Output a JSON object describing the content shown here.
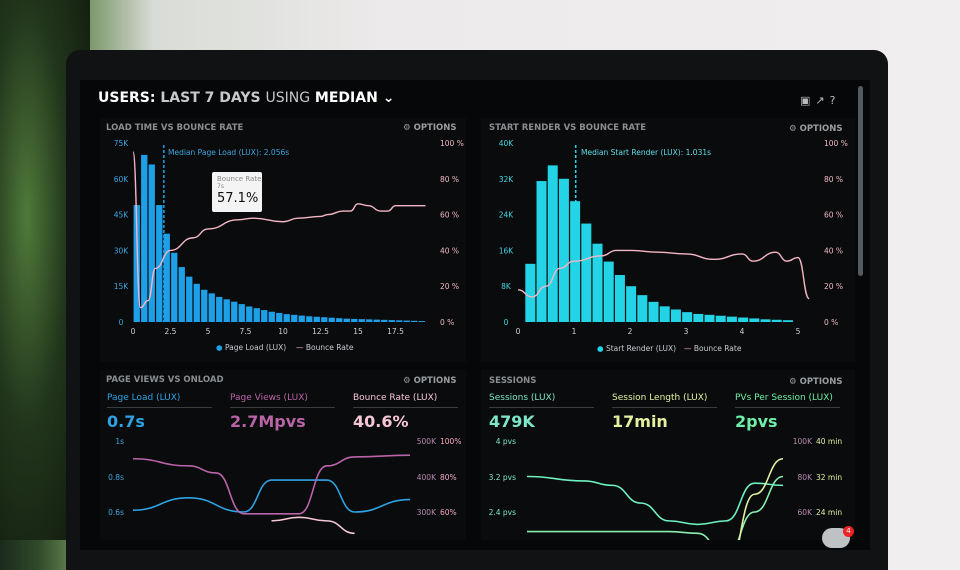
{
  "header": {
    "title_prefix": "USERS:",
    "title_main": "LAST 7 DAYS",
    "title_using": "USING",
    "title_method": "MEDIAN",
    "icons": [
      "monitor-icon",
      "share-icon",
      "help-icon"
    ]
  },
  "options_label": "OPTIONS",
  "panels": {
    "load": {
      "title": "LOAD TIME VS BOUNCE RATE",
      "median_label": "Median Page Load (LUX): 2.056s",
      "tooltip": {
        "title": "Bounce Rate",
        "sub": "7s",
        "value": "57.1%"
      },
      "legend": [
        "Page Load (LUX)",
        "Bounce Rate"
      ]
    },
    "render": {
      "title": "START RENDER VS BOUNCE RATE",
      "median_label": "Median Start Render (LUX): 1.031s",
      "legend": [
        "Start Render (LUX)",
        "Bounce Rate"
      ]
    },
    "pageviews": {
      "title": "PAGE VIEWS VS ONLOAD",
      "metrics": [
        {
          "label": "Page Load (LUX)",
          "value": "0.7s",
          "color": "#2ea3e6"
        },
        {
          "label": "Page Views (LUX)",
          "value": "2.7Mpvs",
          "color": "#b964a8"
        },
        {
          "label": "Bounce Rate (LUX)",
          "value": "40.6%",
          "color": "#f6c6d6"
        }
      ]
    },
    "sessions": {
      "title": "SESSIONS",
      "metrics": [
        {
          "label": "Sessions (LUX)",
          "value": "479K",
          "color": "#7de8c8"
        },
        {
          "label": "Session Length (LUX)",
          "value": "17min",
          "color": "#e4f0a0"
        },
        {
          "label": "PVs Per Session (LUX)",
          "value": "2pvs",
          "color": "#6ef0a8"
        }
      ]
    }
  },
  "notification_count": "4",
  "colors": {
    "blue": "#1ea0e8",
    "cyan": "#22d4e6",
    "pink": "#f4b6c6"
  },
  "chart_data": [
    {
      "type": "bar",
      "title": "LOAD TIME VS BOUNCE RATE",
      "x_ticks": [
        "0",
        "2.5",
        "5",
        "7.5",
        "10",
        "12.5",
        "15",
        "17.5"
      ],
      "y_ticks": [
        "0",
        "15K",
        "30K",
        "45K",
        "60K",
        "75K"
      ],
      "y2_ticks": [
        "0 %",
        "20 %",
        "40 %",
        "60 %",
        "80 %",
        "100 %"
      ],
      "xlim": [
        0,
        20
      ],
      "ylim": [
        0,
        75000
      ],
      "y2lim": [
        0,
        100
      ],
      "bar_width": 0.5,
      "median": 2.056,
      "series": [
        {
          "name": "Page Load (LUX)",
          "type": "bar",
          "values": [
            49000,
            70000,
            66000,
            49000,
            37000,
            29000,
            23000,
            19000,
            16000,
            13500,
            12000,
            10500,
            9500,
            8500,
            7500,
            6500,
            5800,
            5000,
            4300,
            3800,
            3300,
            3000,
            2700,
            2400,
            2200,
            2000,
            1800,
            1600,
            1400,
            1300,
            1200,
            1100,
            1000,
            900,
            800,
            700,
            600,
            500,
            400
          ]
        },
        {
          "name": "Bounce Rate",
          "type": "line",
          "points": [
            [
              0,
              95
            ],
            [
              0.5,
              8
            ],
            [
              1,
              12
            ],
            [
              1.5,
              30
            ],
            [
              2.5,
              40
            ],
            [
              4,
              47
            ],
            [
              5,
              52
            ],
            [
              7,
              57.1
            ],
            [
              8,
              58
            ],
            [
              10,
              56
            ],
            [
              11,
              58
            ],
            [
              12.5,
              59
            ],
            [
              13,
              60
            ],
            [
              14,
              62
            ],
            [
              14.5,
              62
            ],
            [
              15,
              66
            ],
            [
              15.7,
              65
            ],
            [
              16.5,
              62
            ],
            [
              17,
              62
            ],
            [
              17.5,
              65
            ],
            [
              19.5,
              65
            ]
          ]
        }
      ]
    },
    {
      "type": "bar",
      "title": "START RENDER VS BOUNCE RATE",
      "x_ticks": [
        "0",
        "1",
        "2",
        "3",
        "4",
        "5"
      ],
      "y_ticks": [
        "0",
        "8K",
        "16K",
        "24K",
        "32K",
        "40K"
      ],
      "y2_ticks": [
        "0 %",
        "20 %",
        "40 %",
        "60 %",
        "80 %",
        "100 %"
      ],
      "xlim": [
        0,
        5.3
      ],
      "ylim": [
        0,
        40000
      ],
      "y2lim": [
        0,
        100
      ],
      "bar_width": 0.2,
      "median": 1.031,
      "series": [
        {
          "name": "Start Render (LUX)",
          "type": "bar",
          "values": [
            13000,
            31500,
            35000,
            32000,
            27000,
            22000,
            17500,
            13500,
            10500,
            8000,
            6000,
            4500,
            3500,
            2800,
            2200,
            1800,
            1600,
            1400,
            1200,
            1000,
            800,
            600,
            500,
            400
          ]
        },
        {
          "name": "Bounce Rate",
          "type": "line",
          "points": [
            [
              0,
              18
            ],
            [
              0.25,
              14
            ],
            [
              0.5,
              20
            ],
            [
              0.75,
              30
            ],
            [
              1,
              34
            ],
            [
              1.5,
              37
            ],
            [
              1.75,
              40
            ],
            [
              2,
              40
            ],
            [
              2.5,
              39
            ],
            [
              3,
              38
            ],
            [
              3.5,
              35
            ],
            [
              4,
              38
            ],
            [
              4.2,
              34
            ],
            [
              4.6,
              39
            ],
            [
              4.8,
              34
            ],
            [
              5,
              36
            ],
            [
              5.2,
              13
            ]
          ]
        }
      ]
    },
    {
      "type": "line",
      "title": "PAGE VIEWS VS ONLOAD",
      "y_ticks": [
        "0.6s",
        "0.8s",
        "1s"
      ],
      "y2_ticks": [
        "300K",
        "400K",
        "500K"
      ],
      "y3_ticks": [
        "60%",
        "80%",
        "100%"
      ],
      "series": [
        {
          "name": "Page Load (LUX)",
          "points": [
            [
              0,
              0.61
            ],
            [
              2,
              0.68
            ],
            [
              4,
              0.6
            ],
            [
              5,
              0.78
            ],
            [
              7,
              0.78
            ],
            [
              8,
              0.6
            ],
            [
              10,
              0.67
            ]
          ]
        },
        {
          "name": "Page Views (LUX)",
          "points": [
            [
              0,
              450000
            ],
            [
              2,
              430000
            ],
            [
              3,
              410000
            ],
            [
              4,
              295000
            ],
            [
              6,
              295000
            ],
            [
              7,
              430000
            ],
            [
              8,
              455000
            ],
            [
              10,
              460000
            ]
          ]
        },
        {
          "name": "Bounce Rate (LUX)",
          "points": [
            [
              5,
              55
            ],
            [
              6,
              57
            ],
            [
              7,
              55
            ],
            [
              8,
              48
            ]
          ]
        }
      ]
    },
    {
      "type": "line",
      "title": "SESSIONS",
      "y_ticks": [
        "2.4 pvs",
        "3.2 pvs",
        "4 pvs"
      ],
      "y2_ticks": [
        "60K",
        "80K",
        "100K"
      ],
      "y3_ticks": [
        "24 min",
        "32 min",
        "40 min"
      ],
      "series": [
        {
          "name": "PVs Per Session (LUX)",
          "points": [
            [
              0,
              3.2
            ],
            [
              2,
              3.1
            ],
            [
              3,
              3.0
            ],
            [
              4,
              2.6
            ],
            [
              5,
              2.2
            ],
            [
              6,
              2.12
            ],
            [
              7,
              2.2
            ],
            [
              8,
              3.05
            ],
            [
              9,
              3.0
            ]
          ]
        },
        {
          "name": "Sessions (LUX)",
          "points": [
            [
              0,
              49000
            ],
            [
              5,
              49000
            ],
            [
              6,
              48000
            ],
            [
              7,
              35000
            ],
            [
              8,
              60000
            ],
            [
              9,
              80000
            ]
          ]
        },
        {
          "name": "Session Length (LUX)",
          "points": [
            [
              0,
              12
            ],
            [
              1,
              14
            ],
            [
              2,
              12
            ],
            [
              7,
              10
            ],
            [
              8,
              28
            ],
            [
              9,
              36
            ]
          ]
        }
      ]
    }
  ]
}
